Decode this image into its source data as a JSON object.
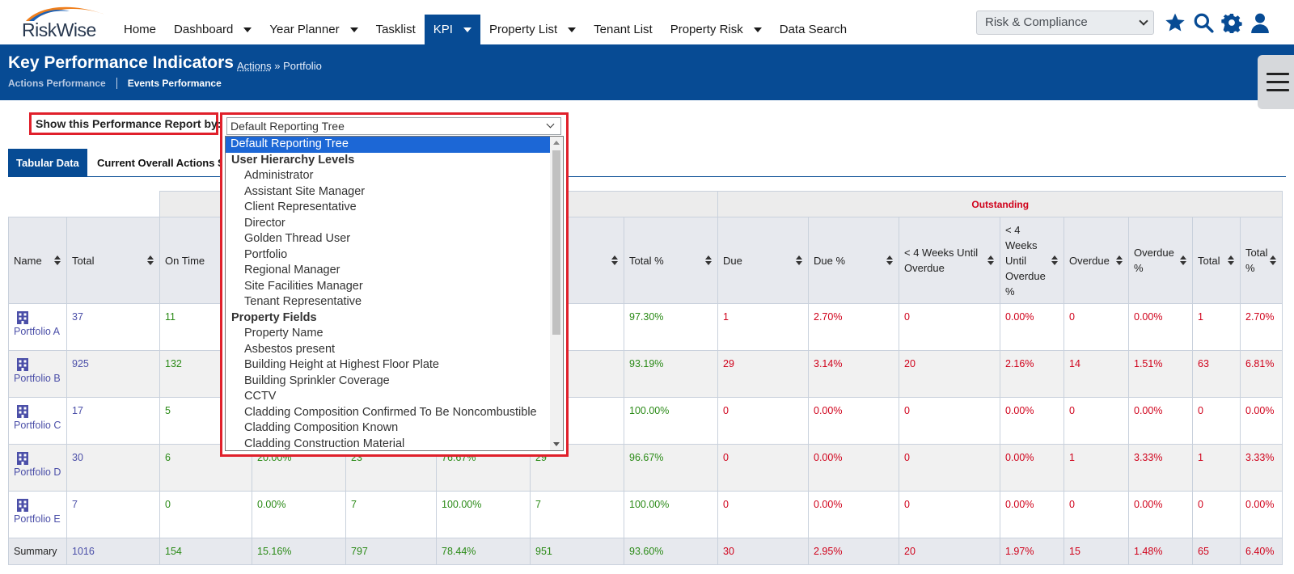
{
  "app": {
    "logo_text": "RiskWise"
  },
  "nav": {
    "items": [
      {
        "label": "Home",
        "dropdown": false,
        "active": false
      },
      {
        "label": "Dashboard",
        "dropdown": true,
        "active": false
      },
      {
        "label": "Year Planner",
        "dropdown": true,
        "active": false
      },
      {
        "label": "Tasklist",
        "dropdown": false,
        "active": false
      },
      {
        "label": "KPI",
        "dropdown": true,
        "active": true
      },
      {
        "label": "Property List",
        "dropdown": true,
        "active": false
      },
      {
        "label": "Tenant List",
        "dropdown": false,
        "active": false
      },
      {
        "label": "Property Risk",
        "dropdown": true,
        "active": false
      },
      {
        "label": "Data Search",
        "dropdown": false,
        "active": false
      }
    ],
    "module_select": "Risk & Compliance",
    "icons": [
      "star-icon",
      "search-icon",
      "gear-icon",
      "user-icon"
    ]
  },
  "header": {
    "title": "Key Performance Indicators",
    "crumb_link": "Actions",
    "crumb_sep": "»",
    "crumb_current": "Portfolio",
    "tabs": [
      "Actions Performance",
      "Events Performance"
    ]
  },
  "filter": {
    "label": "Show this Performance Report by:",
    "selected": "Default Reporting Tree",
    "options": [
      {
        "label": "Default Reporting Tree",
        "type": "selected"
      },
      {
        "label": "User Hierarchy Levels",
        "type": "group"
      },
      {
        "label": "Administrator",
        "type": "option"
      },
      {
        "label": "Assistant Site Manager",
        "type": "option"
      },
      {
        "label": "Client Representative",
        "type": "option"
      },
      {
        "label": "Director",
        "type": "option"
      },
      {
        "label": "Golden Thread User",
        "type": "option"
      },
      {
        "label": "Portfolio",
        "type": "option"
      },
      {
        "label": "Regional Manager",
        "type": "option"
      },
      {
        "label": "Site Facilities Manager",
        "type": "option"
      },
      {
        "label": "Tenant Representative",
        "type": "option"
      },
      {
        "label": "Property Fields",
        "type": "group"
      },
      {
        "label": "Property Name",
        "type": "option"
      },
      {
        "label": "Asbestos present",
        "type": "option"
      },
      {
        "label": "Building Height at Highest Floor Plate",
        "type": "option"
      },
      {
        "label": "Building Sprinkler Coverage",
        "type": "option"
      },
      {
        "label": "CCTV",
        "type": "option"
      },
      {
        "label": "Cladding Composition Confirmed To Be Noncombustible",
        "type": "option"
      },
      {
        "label": "Cladding Composition Known",
        "type": "option"
      },
      {
        "label": "Cladding Construction Material",
        "type": "option"
      }
    ]
  },
  "view_tabs": {
    "tabular": "Tabular Data",
    "overall": "Current Overall Actions S"
  },
  "table": {
    "group_outstanding": "Outstanding",
    "headers": [
      "Name",
      "Total",
      "On Time",
      "",
      "",
      "",
      "",
      "Total %",
      "Due",
      "Due %",
      "< 4 Weeks Until Overdue",
      "< 4 Weeks Until Overdue %",
      "Overdue",
      "Overdue %",
      "Total",
      "Total %"
    ],
    "rows": [
      {
        "name": "Portfolio A",
        "cells": [
          "37",
          "11",
          "",
          "",
          "",
          "",
          "97.30%",
          "1",
          "2.70%",
          "0",
          "0.00%",
          "0",
          "0.00%",
          "1",
          "2.70%"
        ]
      },
      {
        "name": "Portfolio B",
        "cells": [
          "925",
          "132",
          "",
          "",
          "",
          "",
          "93.19%",
          "29",
          "3.14%",
          "20",
          "2.16%",
          "14",
          "1.51%",
          "63",
          "6.81%"
        ]
      },
      {
        "name": "Portfolio C",
        "cells": [
          "17",
          "5",
          "",
          "",
          "",
          "",
          "100.00%",
          "0",
          "0.00%",
          "0",
          "0.00%",
          "0",
          "0.00%",
          "0",
          "0.00%"
        ]
      },
      {
        "name": "Portfolio D",
        "cells": [
          "30",
          "6",
          "20.00%",
          "23",
          "76.67%",
          "29",
          "96.67%",
          "0",
          "0.00%",
          "0",
          "0.00%",
          "1",
          "3.33%",
          "1",
          "3.33%"
        ]
      },
      {
        "name": "Portfolio E",
        "cells": [
          "7",
          "0",
          "0.00%",
          "7",
          "100.00%",
          "7",
          "100.00%",
          "0",
          "0.00%",
          "0",
          "0.00%",
          "0",
          "0.00%",
          "0",
          "0.00%"
        ]
      }
    ],
    "summary": {
      "label": "Summary",
      "cells": [
        "1016",
        "154",
        "15.16%",
        "797",
        "78.44%",
        "951",
        "93.60%",
        "30",
        "2.95%",
        "20",
        "1.97%",
        "15",
        "1.48%",
        "65",
        "6.40%"
      ]
    }
  }
}
